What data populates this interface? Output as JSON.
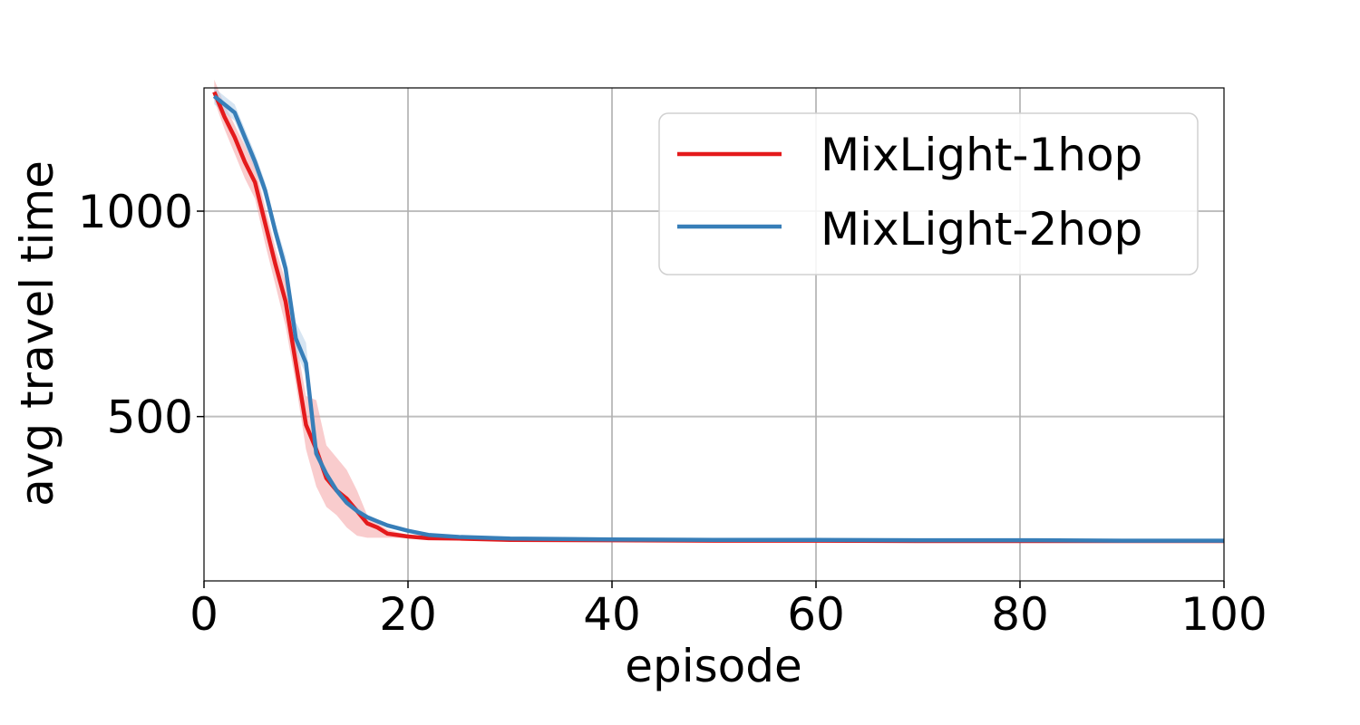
{
  "chart_data": {
    "type": "line",
    "title": "",
    "xlabel": "episode",
    "ylabel": "avg travel time",
    "xlim": [
      0,
      100
    ],
    "ylim": [
      100,
      1300
    ],
    "xticks": [
      0,
      20,
      40,
      60,
      80,
      100
    ],
    "yticks": [
      500,
      1000
    ],
    "grid": true,
    "legend_position": "top-right",
    "series": [
      {
        "name": "MixLight-1hop",
        "color": "#e41a1c",
        "band_color": "#f4a3a4",
        "x": [
          1,
          2,
          3,
          4,
          5,
          6,
          7,
          8,
          9,
          10,
          11,
          12,
          13,
          14,
          15,
          16,
          17,
          18,
          20,
          22,
          25,
          30,
          40,
          50,
          60,
          70,
          80,
          90,
          100
        ],
        "values": [
          1290,
          1230,
          1180,
          1120,
          1070,
          970,
          870,
          780,
          630,
          480,
          420,
          350,
          320,
          300,
          270,
          240,
          230,
          215,
          208,
          204,
          203,
          200,
          199,
          198,
          198,
          197,
          197,
          197,
          197
        ],
        "lower": [
          1270,
          1200,
          1140,
          1080,
          1030,
          920,
          820,
          720,
          580,
          420,
          330,
          280,
          260,
          230,
          210,
          205,
          205,
          205,
          204,
          202,
          201,
          199,
          198,
          197,
          197,
          196,
          196,
          196,
          196
        ],
        "upper": [
          1320,
          1260,
          1210,
          1160,
          1110,
          1010,
          910,
          830,
          690,
          550,
          540,
          430,
          400,
          370,
          320,
          260,
          240,
          225,
          212,
          206,
          205,
          201,
          200,
          199,
          199,
          198,
          198,
          198,
          198
        ]
      },
      {
        "name": "MixLight-2hop",
        "color": "#377eb8",
        "band_color": "#b7cfe8",
        "x": [
          1,
          2,
          3,
          4,
          5,
          6,
          7,
          8,
          9,
          10,
          11,
          12,
          13,
          14,
          15,
          16,
          17,
          18,
          20,
          22,
          25,
          30,
          40,
          50,
          60,
          70,
          80,
          90,
          100
        ],
        "values": [
          1280,
          1260,
          1240,
          1180,
          1120,
          1050,
          950,
          860,
          690,
          630,
          410,
          360,
          320,
          290,
          270,
          255,
          245,
          235,
          222,
          212,
          207,
          203,
          201,
          200,
          200,
          199,
          199,
          198,
          198
        ],
        "lower": [
          1260,
          1240,
          1220,
          1160,
          1100,
          1030,
          930,
          840,
          660,
          600,
          400,
          355,
          315,
          285,
          265,
          250,
          240,
          230,
          218,
          209,
          205,
          201,
          199,
          198,
          198,
          197,
          197,
          196,
          196
        ],
        "upper": [
          1300,
          1280,
          1260,
          1200,
          1140,
          1070,
          970,
          890,
          730,
          680,
          420,
          370,
          330,
          300,
          280,
          262,
          250,
          240,
          226,
          215,
          209,
          205,
          203,
          202,
          202,
          201,
          201,
          200,
          200
        ]
      }
    ]
  }
}
